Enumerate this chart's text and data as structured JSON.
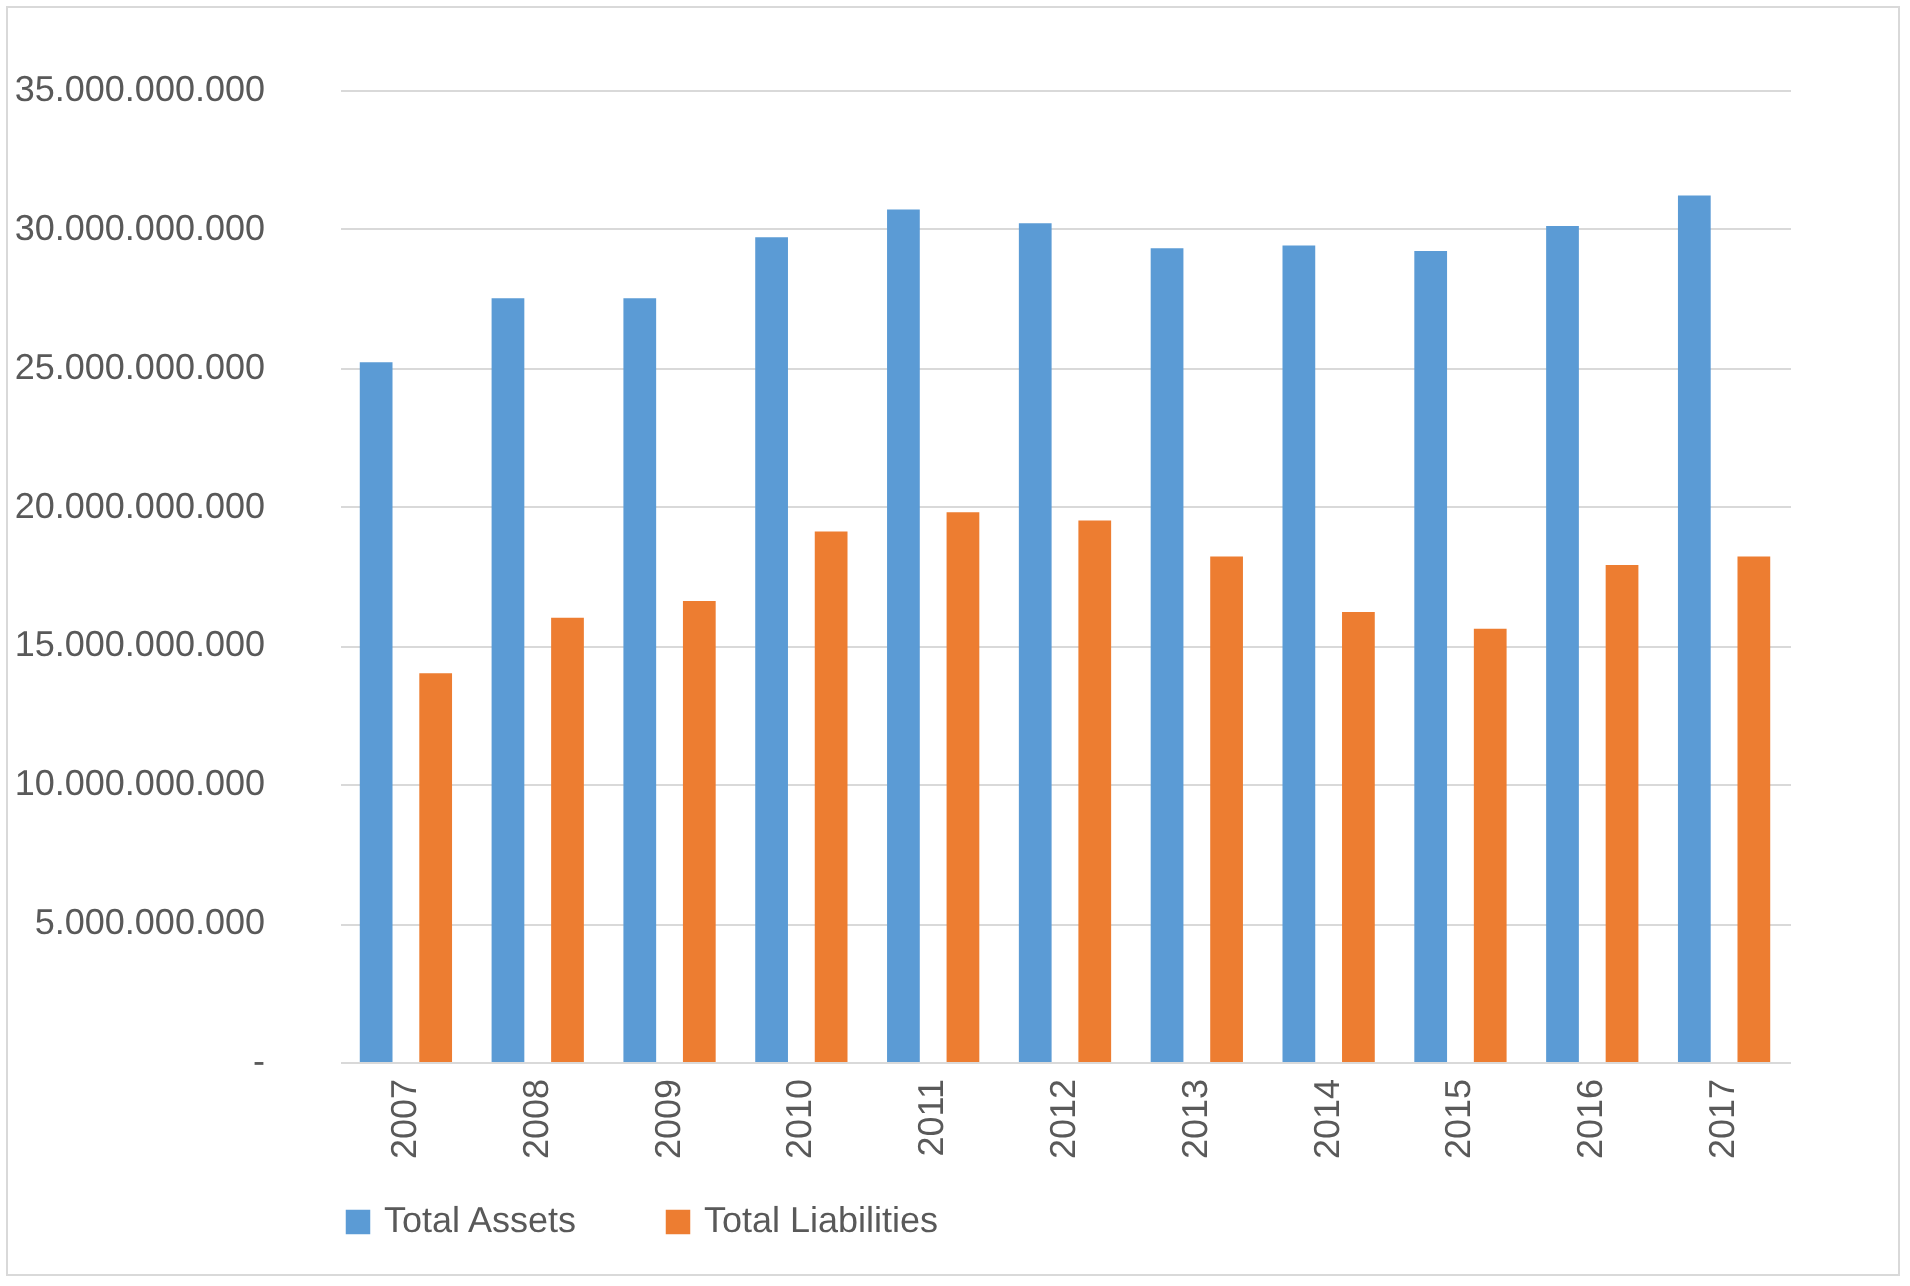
{
  "chart_data": {
    "type": "bar",
    "categories": [
      "2007",
      "2008",
      "2009",
      "2010",
      "2011",
      "2012",
      "2013",
      "2014",
      "2015",
      "2016",
      "2017"
    ],
    "series": [
      {
        "name": "Total Assets",
        "color": "#5b9bd5",
        "values": [
          25200000000,
          27500000000,
          27500000000,
          29700000000,
          30700000000,
          30200000000,
          29300000000,
          29400000000,
          29200000000,
          30100000000,
          31200000000
        ]
      },
      {
        "name": "Total Liabilities",
        "color": "#ed7d31",
        "values": [
          14000000000,
          16000000000,
          16600000000,
          19100000000,
          19800000000,
          19500000000,
          18200000000,
          16200000000,
          15600000000,
          17900000000,
          18200000000
        ]
      }
    ],
    "ylim": [
      0,
      35000000000
    ],
    "yticks": [
      {
        "value": 0,
        "label": "-"
      },
      {
        "value": 5000000000,
        "label": "5.000.000.000"
      },
      {
        "value": 10000000000,
        "label": "10.000.000.000"
      },
      {
        "value": 15000000000,
        "label": "15.000.000.000"
      },
      {
        "value": 20000000000,
        "label": "20.000.000.000"
      },
      {
        "value": 25000000000,
        "label": "25.000.000.000"
      },
      {
        "value": 30000000000,
        "label": "30.000.000.000"
      },
      {
        "value": 35000000000,
        "label": "35.000.000.000"
      }
    ],
    "grid": "y",
    "legend": "bottom"
  }
}
